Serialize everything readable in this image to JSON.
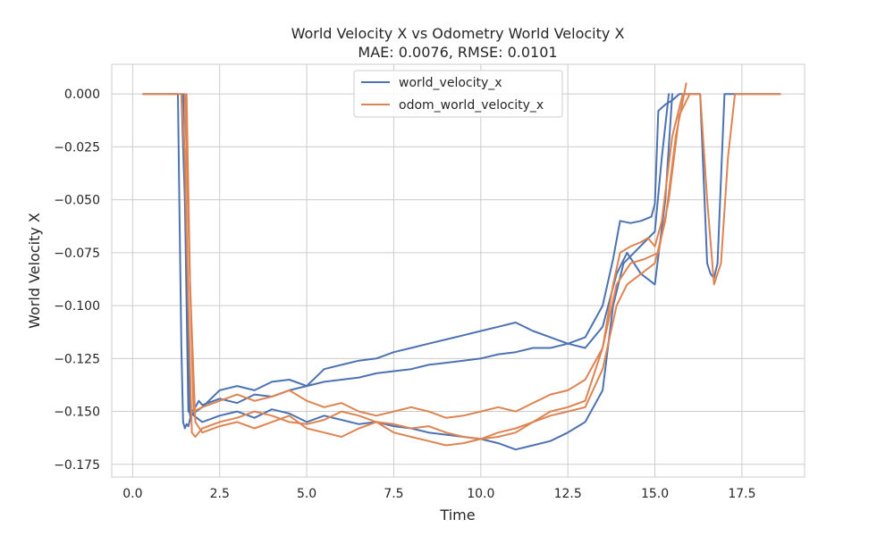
{
  "chart_data": {
    "type": "line",
    "title": "World Velocity X vs Odometry World Velocity X",
    "subtitle": "MAE: 0.0076, RMSE: 0.0101",
    "xlabel": "Time",
    "ylabel": "World Velocity X",
    "xlim": [
      -0.6,
      19.3
    ],
    "ylim": [
      -0.181,
      0.014
    ],
    "xticks": [
      0.0,
      2.5,
      5.0,
      7.5,
      10.0,
      12.5,
      15.0,
      17.5
    ],
    "xtick_labels": [
      "0.0",
      "2.5",
      "5.0",
      "7.5",
      "10.0",
      "12.5",
      "15.0",
      "17.5"
    ],
    "yticks": [
      0.0,
      -0.025,
      -0.05,
      -0.075,
      -0.1,
      -0.125,
      -0.15,
      -0.175
    ],
    "ytick_labels": [
      "0.000",
      "−0.025",
      "−0.050",
      "−0.075",
      "−0.100",
      "−0.125",
      "−0.150",
      "−0.175"
    ],
    "grid": true,
    "legend_position": "top-center",
    "series": [
      {
        "name": "world_velocity_x",
        "color": "#4c72b0",
        "x": [
          0.3,
          1.3,
          1.35,
          1.4,
          1.45,
          1.5,
          1.55,
          1.6,
          1.7,
          1.8,
          1.9,
          2.0,
          2.5,
          3.0,
          3.5,
          4.0,
          4.5,
          5.0,
          5.5,
          6.0,
          6.5,
          7.0,
          7.5,
          8.0,
          8.5,
          9.0,
          9.5,
          10.0,
          10.5,
          11.0,
          11.5,
          12.0,
          12.5,
          13.0,
          13.5,
          13.8,
          14.0,
          14.3,
          14.6,
          14.9,
          15.0,
          15.1,
          15.3,
          15.5,
          15.7,
          16.0,
          16.3,
          16.5,
          16.6,
          16.7,
          16.8,
          16.9,
          17.0,
          17.2,
          18.6
        ],
        "y": [
          0.0,
          0.0,
          -0.06,
          -0.12,
          -0.155,
          -0.158,
          -0.156,
          -0.157,
          -0.15,
          -0.148,
          -0.145,
          -0.147,
          -0.144,
          -0.146,
          -0.142,
          -0.143,
          -0.14,
          -0.138,
          -0.136,
          -0.135,
          -0.134,
          -0.132,
          -0.131,
          -0.13,
          -0.128,
          -0.127,
          -0.126,
          -0.125,
          -0.123,
          -0.122,
          -0.12,
          -0.12,
          -0.118,
          -0.115,
          -0.1,
          -0.078,
          -0.06,
          -0.061,
          -0.06,
          -0.058,
          -0.052,
          -0.008,
          -0.005,
          -0.003,
          0.0,
          0.0,
          0.0,
          -0.08,
          -0.085,
          -0.087,
          -0.08,
          -0.04,
          0.0,
          0.0,
          0.0
        ]
      },
      {
        "name": "world_velocity_x",
        "color": "#4c72b0",
        "x": [
          1.4,
          1.5,
          1.6,
          2.0,
          2.5,
          3.0,
          3.5,
          4.0,
          4.5,
          5.0,
          5.5,
          6.0,
          6.5,
          7.0,
          7.5,
          8.0,
          8.5,
          9.0,
          9.5,
          10.0,
          10.5,
          11.0,
          11.5,
          12.0,
          12.5,
          13.0,
          13.5,
          13.8,
          14.1,
          14.4,
          14.7,
          15.0,
          15.2,
          15.4
        ],
        "y": [
          0.0,
          -0.05,
          -0.15,
          -0.155,
          -0.152,
          -0.15,
          -0.153,
          -0.149,
          -0.151,
          -0.155,
          -0.152,
          -0.154,
          -0.156,
          -0.155,
          -0.157,
          -0.158,
          -0.16,
          -0.161,
          -0.162,
          -0.163,
          -0.165,
          -0.168,
          -0.166,
          -0.164,
          -0.16,
          -0.155,
          -0.14,
          -0.1,
          -0.08,
          -0.075,
          -0.07,
          -0.065,
          -0.03,
          0.0
        ]
      },
      {
        "name": "world_velocity_x",
        "color": "#4c72b0",
        "x": [
          1.45,
          1.55,
          1.65,
          2.0,
          2.5,
          3.0,
          3.5,
          4.0,
          4.5,
          5.0,
          5.5,
          6.0,
          6.5,
          7.0,
          7.5,
          8.0,
          8.5,
          9.0,
          9.5,
          10.0,
          10.5,
          11.0,
          11.5,
          12.0,
          12.5,
          13.0,
          13.5,
          13.9,
          14.2,
          14.6,
          15.0,
          15.3,
          15.5
        ],
        "y": [
          0.0,
          -0.08,
          -0.152,
          -0.148,
          -0.14,
          -0.138,
          -0.14,
          -0.136,
          -0.135,
          -0.138,
          -0.13,
          -0.128,
          -0.126,
          -0.125,
          -0.122,
          -0.12,
          -0.118,
          -0.116,
          -0.114,
          -0.112,
          -0.11,
          -0.108,
          -0.112,
          -0.115,
          -0.118,
          -0.12,
          -0.11,
          -0.085,
          -0.075,
          -0.085,
          -0.09,
          -0.05,
          0.0
        ]
      },
      {
        "name": "odom_world_velocity_x",
        "color": "#dd8452",
        "x": [
          0.3,
          1.4,
          1.5,
          1.6,
          1.7,
          1.8,
          2.0,
          2.5,
          3.0,
          3.5,
          4.0,
          4.5,
          5.0,
          5.5,
          6.0,
          6.5,
          7.0,
          7.5,
          8.0,
          8.5,
          9.0,
          9.5,
          10.0,
          10.5,
          11.0,
          11.5,
          12.0,
          12.5,
          13.0,
          13.5,
          13.8,
          14.0,
          14.3,
          14.6,
          14.8,
          15.0,
          15.2,
          15.5,
          15.8,
          16.0,
          16.3,
          16.5,
          16.7,
          16.9,
          17.1,
          17.3,
          18.6
        ],
        "y": [
          0.0,
          0.0,
          -0.03,
          -0.1,
          -0.16,
          -0.162,
          -0.158,
          -0.155,
          -0.153,
          -0.15,
          -0.152,
          -0.155,
          -0.156,
          -0.154,
          -0.15,
          -0.152,
          -0.155,
          -0.156,
          -0.158,
          -0.157,
          -0.16,
          -0.162,
          -0.163,
          -0.16,
          -0.158,
          -0.155,
          -0.15,
          -0.148,
          -0.145,
          -0.12,
          -0.09,
          -0.075,
          -0.072,
          -0.07,
          -0.068,
          -0.072,
          -0.06,
          -0.02,
          0.0,
          0.0,
          0.0,
          -0.05,
          -0.09,
          -0.08,
          -0.03,
          0.0,
          0.0
        ]
      },
      {
        "name": "odom_world_velocity_x",
        "color": "#dd8452",
        "x": [
          1.5,
          1.6,
          1.75,
          2.0,
          2.5,
          3.0,
          3.5,
          4.0,
          4.5,
          5.0,
          5.5,
          6.0,
          6.5,
          7.0,
          7.5,
          8.0,
          8.5,
          9.0,
          9.5,
          10.0,
          10.5,
          11.0,
          11.5,
          12.0,
          12.5,
          13.0,
          13.5,
          13.9,
          14.3,
          14.7,
          15.1,
          15.4,
          15.7,
          16.0
        ],
        "y": [
          0.0,
          -0.06,
          -0.15,
          -0.148,
          -0.145,
          -0.142,
          -0.145,
          -0.143,
          -0.14,
          -0.145,
          -0.148,
          -0.146,
          -0.15,
          -0.152,
          -0.15,
          -0.148,
          -0.15,
          -0.153,
          -0.152,
          -0.15,
          -0.148,
          -0.15,
          -0.146,
          -0.142,
          -0.14,
          -0.135,
          -0.12,
          -0.09,
          -0.08,
          -0.078,
          -0.075,
          -0.05,
          -0.01,
          0.0
        ]
      },
      {
        "name": "odom_world_velocity_x",
        "color": "#dd8452",
        "x": [
          1.55,
          1.65,
          1.8,
          2.0,
          2.5,
          3.0,
          3.5,
          4.0,
          4.5,
          5.0,
          5.5,
          6.0,
          6.5,
          7.0,
          7.5,
          8.0,
          8.5,
          9.0,
          9.5,
          10.0,
          10.5,
          11.0,
          11.5,
          12.0,
          12.5,
          13.0,
          13.5,
          13.9,
          14.2,
          14.6,
          15.0,
          15.3,
          15.6,
          15.9
        ],
        "y": [
          0.0,
          -0.09,
          -0.155,
          -0.16,
          -0.157,
          -0.155,
          -0.158,
          -0.155,
          -0.152,
          -0.158,
          -0.16,
          -0.162,
          -0.158,
          -0.155,
          -0.16,
          -0.162,
          -0.164,
          -0.166,
          -0.165,
          -0.163,
          -0.162,
          -0.16,
          -0.155,
          -0.152,
          -0.15,
          -0.148,
          -0.13,
          -0.1,
          -0.09,
          -0.085,
          -0.08,
          -0.06,
          -0.02,
          0.005
        ]
      }
    ]
  }
}
